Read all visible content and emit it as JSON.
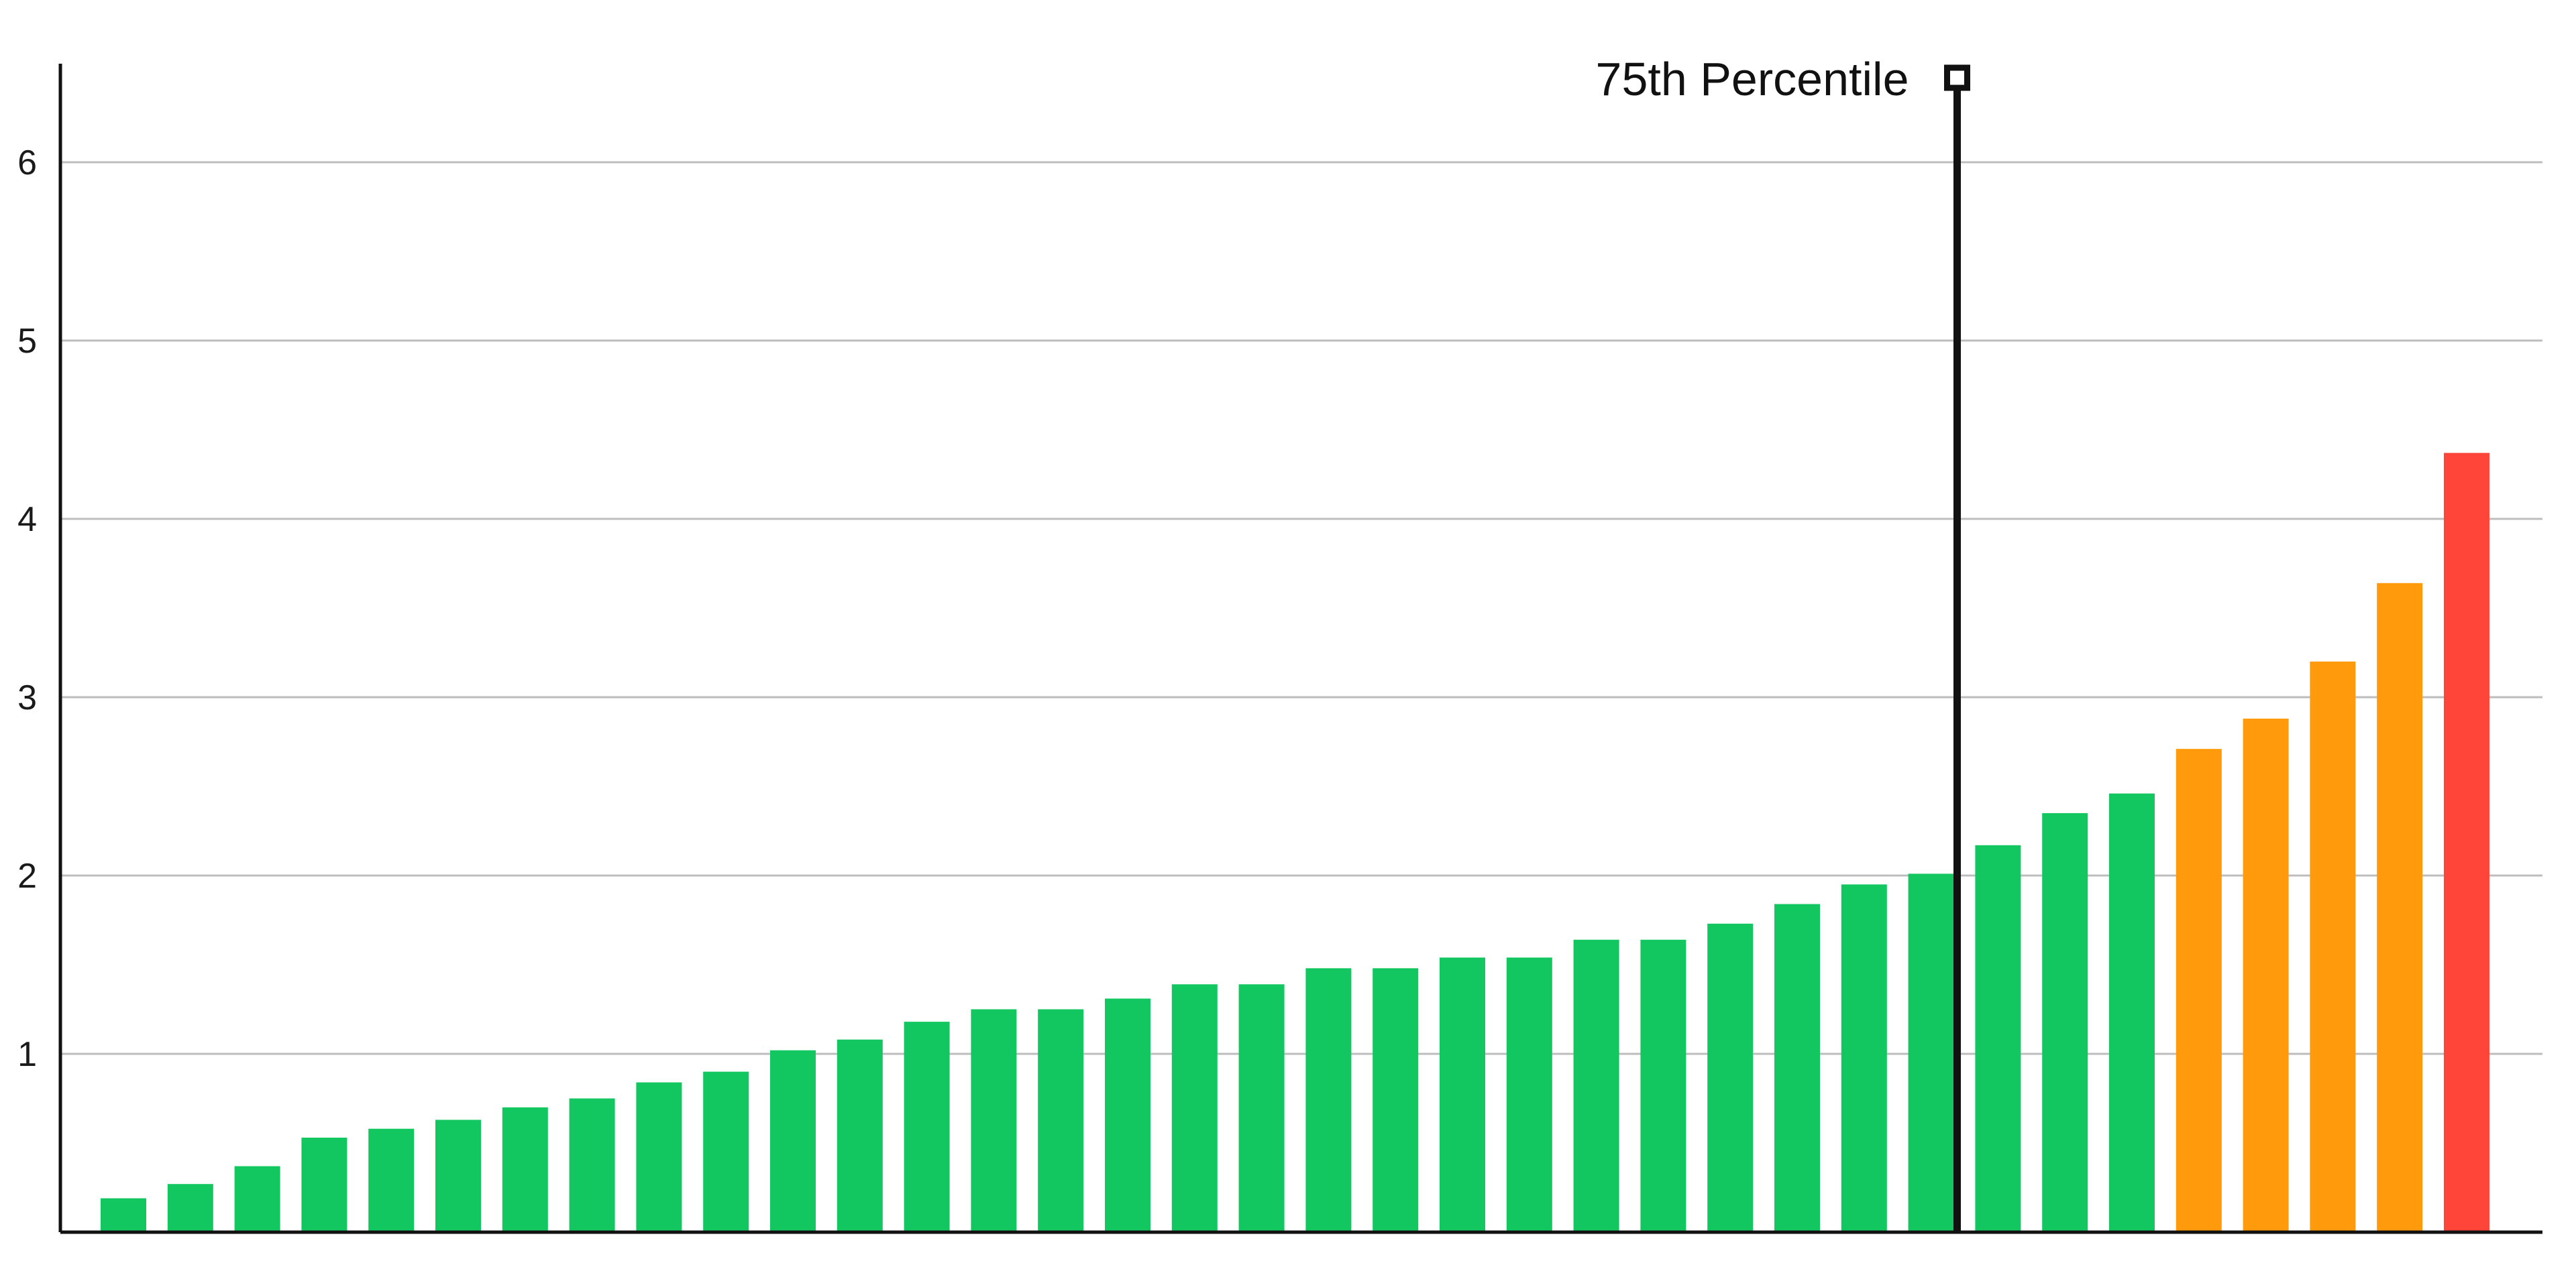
{
  "chart_data": {
    "type": "bar",
    "ylim": [
      0,
      6.5
    ],
    "yticks": [
      {
        "value": 1,
        "label": "1"
      },
      {
        "value": 2,
        "label": "2"
      },
      {
        "value": 3,
        "label": "3"
      },
      {
        "value": 4,
        "label": "4"
      },
      {
        "value": 5,
        "label": "5"
      },
      {
        "value": 6,
        "label": "6"
      }
    ],
    "grid": true,
    "xlabel": "",
    "ylabel": "",
    "title": "",
    "values": [
      0.19,
      0.27,
      0.37,
      0.53,
      0.58,
      0.63,
      0.7,
      0.75,
      0.84,
      0.9,
      1.02,
      1.08,
      1.18,
      1.25,
      1.25,
      1.31,
      1.39,
      1.39,
      1.48,
      1.48,
      1.54,
      1.54,
      1.64,
      1.64,
      1.73,
      1.84,
      1.95,
      2.01,
      2.17,
      2.35,
      2.46,
      2.71,
      2.88,
      3.2,
      3.64,
      4.37
    ],
    "bar_colors": [
      "#12c75f",
      "#12c75f",
      "#12c75f",
      "#12c75f",
      "#12c75f",
      "#12c75f",
      "#12c75f",
      "#12c75f",
      "#12c75f",
      "#12c75f",
      "#12c75f",
      "#12c75f",
      "#12c75f",
      "#12c75f",
      "#12c75f",
      "#12c75f",
      "#12c75f",
      "#12c75f",
      "#12c75f",
      "#12c75f",
      "#12c75f",
      "#12c75f",
      "#12c75f",
      "#12c75f",
      "#12c75f",
      "#12c75f",
      "#12c75f",
      "#12c75f",
      "#12c75f",
      "#12c75f",
      "#12c75f",
      "#ff9a0d",
      "#ff9a0d",
      "#ff9a0d",
      "#ff9a0d",
      "#ff443a"
    ],
    "annotation": {
      "label": "75th Percentile",
      "after_bar": 28
    }
  },
  "colors": {
    "green": "#12c75f",
    "orange": "#ff9a0d",
    "red": "#ff443a"
  }
}
